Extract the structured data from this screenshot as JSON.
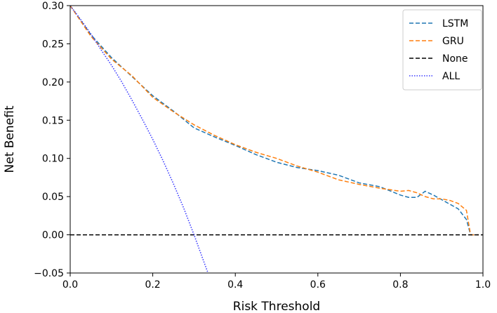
{
  "chart_data": {
    "type": "line",
    "title": "",
    "xlabel": "Risk Threshold",
    "ylabel": "Net Benefit",
    "xlim": [
      0.0,
      1.0
    ],
    "ylim": [
      -0.05,
      0.3
    ],
    "grid": false,
    "legend_position": "top-right",
    "x_ticks": [
      0.0,
      0.2,
      0.4,
      0.6,
      0.8,
      1.0
    ],
    "x_tick_labels": [
      "0.0",
      "0.2",
      "0.4",
      "0.6",
      "0.8",
      "1.0"
    ],
    "y_ticks": [
      -0.05,
      0.0,
      0.05,
      0.1,
      0.15,
      0.2,
      0.25,
      0.3
    ],
    "y_tick_labels": [
      "−0.05",
      "0.00",
      "0.05",
      "0.10",
      "0.15",
      "0.20",
      "0.25",
      "0.30"
    ],
    "series": [
      {
        "name": "LSTM",
        "color": "#1f77b4",
        "style": "dashed",
        "x": [
          0.0,
          0.05,
          0.1,
          0.15,
          0.2,
          0.25,
          0.3,
          0.35,
          0.4,
          0.45,
          0.5,
          0.55,
          0.6,
          0.65,
          0.7,
          0.75,
          0.8,
          0.82,
          0.84,
          0.86,
          0.88,
          0.9,
          0.92,
          0.94,
          0.96,
          0.97,
          0.99
        ],
        "y": [
          0.3,
          0.262,
          0.232,
          0.207,
          0.182,
          0.162,
          0.14,
          0.128,
          0.117,
          0.105,
          0.095,
          0.088,
          0.084,
          0.078,
          0.068,
          0.063,
          0.052,
          0.049,
          0.049,
          0.057,
          0.052,
          0.046,
          0.04,
          0.034,
          0.02,
          0.0,
          0.0
        ]
      },
      {
        "name": "GRU",
        "color": "#ff7f0e",
        "style": "dashed",
        "x": [
          0.0,
          0.05,
          0.1,
          0.15,
          0.2,
          0.25,
          0.3,
          0.35,
          0.4,
          0.45,
          0.5,
          0.55,
          0.6,
          0.65,
          0.7,
          0.75,
          0.8,
          0.82,
          0.84,
          0.86,
          0.88,
          0.9,
          0.92,
          0.94,
          0.96,
          0.97,
          0.99
        ],
        "y": [
          0.3,
          0.26,
          0.23,
          0.208,
          0.18,
          0.161,
          0.144,
          0.13,
          0.118,
          0.108,
          0.1,
          0.09,
          0.082,
          0.072,
          0.066,
          0.061,
          0.057,
          0.058,
          0.055,
          0.05,
          0.047,
          0.047,
          0.045,
          0.041,
          0.032,
          0.0,
          0.0
        ]
      },
      {
        "name": "None",
        "color": "#000000",
        "style": "dashed",
        "x": [
          0.0,
          1.0
        ],
        "y": [
          0.0,
          0.0
        ]
      },
      {
        "name": "ALL",
        "color": "#3b3bff",
        "style": "dotted",
        "x": [
          0.0,
          0.025,
          0.05,
          0.075,
          0.1,
          0.125,
          0.15,
          0.175,
          0.2,
          0.225,
          0.25,
          0.275,
          0.3,
          0.325,
          0.34
        ],
        "y": [
          0.3,
          0.282,
          0.263,
          0.242,
          0.222,
          0.2,
          0.176,
          0.151,
          0.125,
          0.097,
          0.067,
          0.035,
          0.0,
          -0.037,
          -0.059
        ]
      }
    ]
  }
}
